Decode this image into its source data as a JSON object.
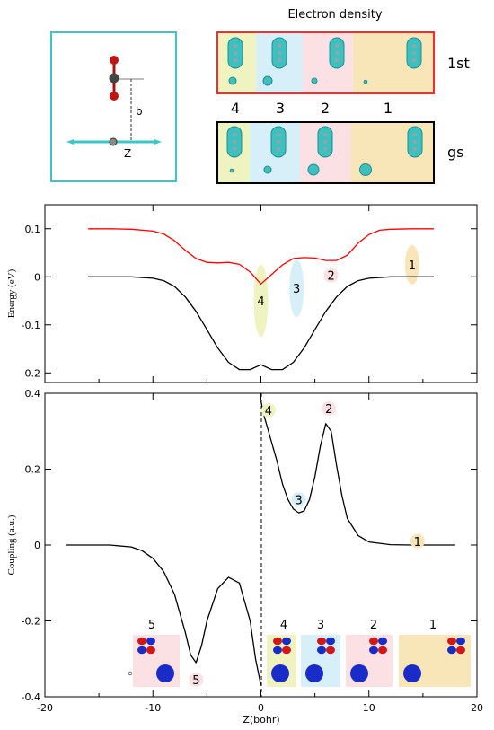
{
  "header": {
    "title": "Electron density",
    "state_labels": [
      "1st",
      "gs"
    ],
    "region_numbers": [
      "4",
      "3",
      "2",
      "1"
    ]
  },
  "inset": {
    "b_label": "b",
    "z_label": "Z"
  },
  "colors": {
    "region1": "#f9e6b8",
    "region2": "#fbe1e3",
    "region3": "#d6eff8",
    "region4": "#eef3c0",
    "region5": "#fbe1e3",
    "excited_curve": "#ff0000",
    "ground_curve": "#000000",
    "inset_border": "#3cc6c6",
    "box_1st_border": "#ff2a2a",
    "box_gs_border": "#000000"
  },
  "chart_data": [
    {
      "type": "line",
      "ylabel": "Energy (eV)",
      "xlabel": "",
      "xlim": [
        -20,
        20
      ],
      "ylim": [
        -0.22,
        0.15
      ],
      "y_ticks": [
        "0.1",
        "0",
        "-0.1",
        "-0.2"
      ],
      "series": [
        {
          "color": "#ff0000",
          "x": [
            -16,
            -14,
            -12,
            -10,
            -9,
            -8,
            -7,
            -6,
            -5,
            -4,
            -3,
            -2,
            -1,
            0,
            1,
            2,
            3,
            4,
            5,
            6,
            7,
            8,
            9,
            10,
            11,
            12,
            14,
            16
          ],
          "y": [
            0.1,
            0.1,
            0.099,
            0.095,
            0.089,
            0.075,
            0.055,
            0.038,
            0.03,
            0.029,
            0.03,
            0.026,
            0.01,
            -0.015,
            0.005,
            0.025,
            0.038,
            0.04,
            0.039,
            0.034,
            0.034,
            0.045,
            0.07,
            0.088,
            0.097,
            0.099,
            0.1,
            0.1
          ]
        },
        {
          "color": "#000000",
          "x": [
            -16,
            -12,
            -10,
            -9,
            -8,
            -7,
            -6,
            -5,
            -4,
            -3,
            -2,
            -1,
            0,
            1,
            2,
            3,
            4,
            5,
            6,
            7,
            8,
            9,
            10,
            12,
            16
          ],
          "y": [
            0.0,
            0.0,
            -0.003,
            -0.008,
            -0.02,
            -0.042,
            -0.072,
            -0.11,
            -0.148,
            -0.178,
            -0.193,
            -0.193,
            -0.183,
            -0.193,
            -0.193,
            -0.178,
            -0.148,
            -0.11,
            -0.072,
            -0.042,
            -0.02,
            -0.008,
            -0.003,
            0.0,
            0.0
          ]
        }
      ],
      "markers": [
        {
          "label": "1",
          "x": 14,
          "y": 0.025,
          "region": "region1"
        },
        {
          "label": "2",
          "x": 6.5,
          "y": 0.003,
          "region": "region2"
        },
        {
          "label": "3",
          "x": 3.3,
          "y": -0.024,
          "region": "region3"
        },
        {
          "label": "4",
          "x": 0,
          "y": -0.05,
          "region": "region4"
        }
      ]
    },
    {
      "type": "line",
      "ylabel": "Coupling (a.u.)",
      "xlabel": "Z(bohr)",
      "xlim": [
        -20,
        20
      ],
      "ylim": [
        -0.4,
        0.4
      ],
      "x_ticks": [
        "-20",
        "-10",
        "0",
        "10",
        "20"
      ],
      "y_ticks": [
        "0.4",
        "0.2",
        "0",
        "-0.2",
        "-0.4"
      ],
      "series": [
        {
          "color": "#000000",
          "x": [
            -18,
            -14,
            -12,
            -11,
            -10,
            -9,
            -8,
            -7,
            -6.5,
            -6,
            -5.5,
            -5,
            -4,
            -3,
            -2,
            -1,
            -0.5,
            0
          ],
          "y": [
            0.0,
            0.0,
            -0.005,
            -0.015,
            -0.035,
            -0.07,
            -0.13,
            -0.23,
            -0.29,
            -0.31,
            -0.265,
            -0.2,
            -0.115,
            -0.085,
            -0.1,
            -0.2,
            -0.3,
            -0.37
          ]
        },
        {
          "color": "#000000",
          "x": [
            0,
            0.3,
            0.8,
            1.5,
            2,
            2.5,
            3,
            3.5,
            4,
            4.5,
            5,
            5.5,
            6,
            6.5,
            7,
            7.5,
            8,
            9,
            10,
            12,
            14,
            16,
            18
          ],
          "y": [
            0.38,
            0.34,
            0.29,
            0.22,
            0.16,
            0.12,
            0.095,
            0.085,
            0.09,
            0.12,
            0.18,
            0.26,
            0.32,
            0.3,
            0.21,
            0.13,
            0.07,
            0.025,
            0.008,
            0.001,
            0.0,
            0.0,
            0.0
          ]
        }
      ],
      "markers": [
        {
          "label": "4",
          "x": 0.7,
          "y": 0.355,
          "region": "region4"
        },
        {
          "label": "2",
          "x": 6.3,
          "y": 0.36,
          "region": "region2"
        },
        {
          "label": "3",
          "x": 3.5,
          "y": 0.12,
          "region": "region3"
        },
        {
          "label": "1",
          "x": 14.5,
          "y": 0.01,
          "region": "region1"
        },
        {
          "label": "5",
          "x": -6,
          "y": -0.355,
          "region": "region5"
        }
      ],
      "orbital_labels": [
        "5",
        "4",
        "3",
        "2",
        "1"
      ]
    }
  ]
}
